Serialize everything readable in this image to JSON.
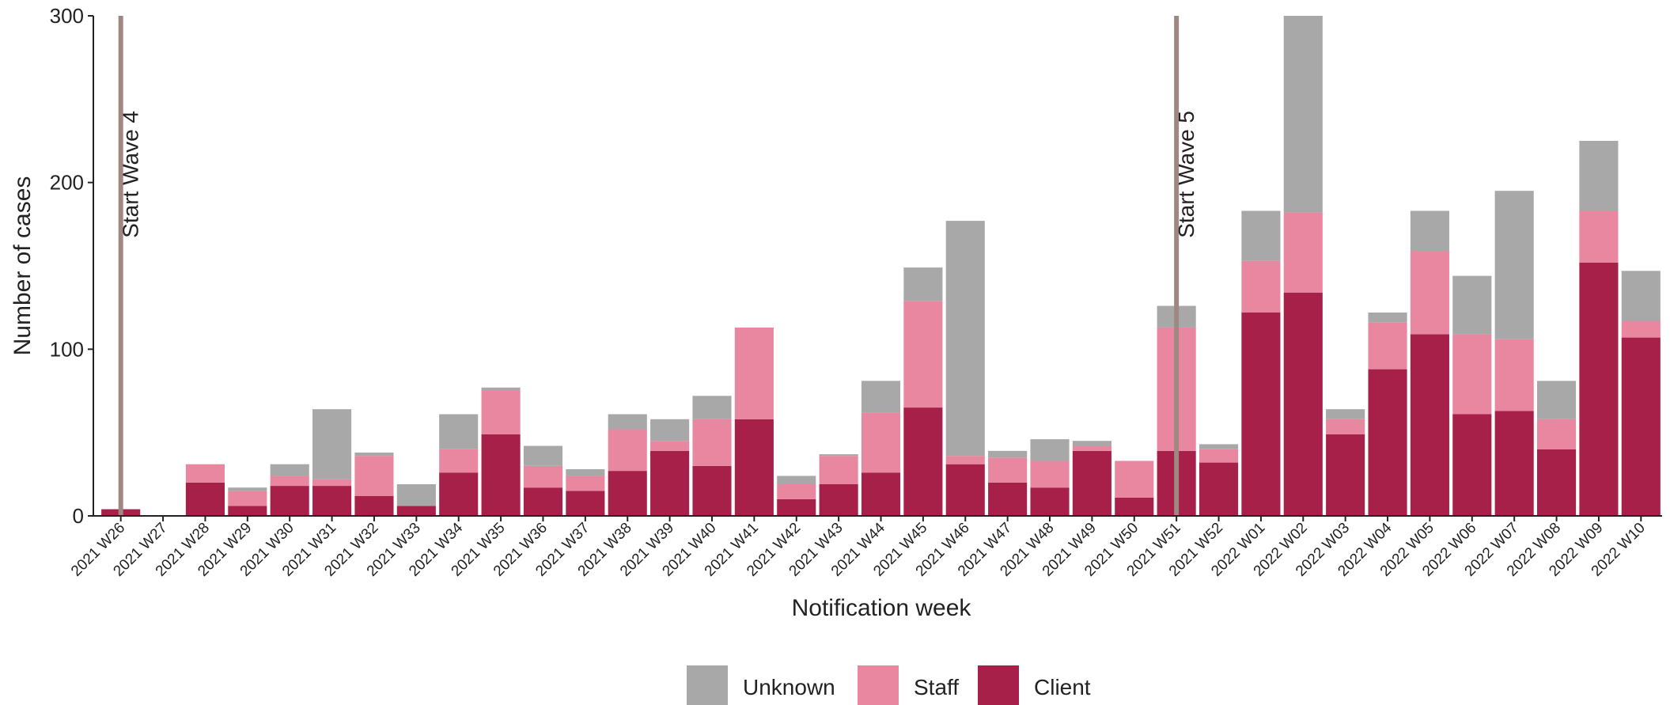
{
  "chart_data": {
    "type": "stacked_bar",
    "x_label": "Notification week",
    "y_label": "Number of cases",
    "categories": [
      "2021 W26",
      "2021 W27",
      "2021 W28",
      "2021 W29",
      "2021 W30",
      "2021 W31",
      "2021 W32",
      "2021 W33",
      "2021 W34",
      "2021 W35",
      "2021 W36",
      "2021 W37",
      "2021 W38",
      "2021 W39",
      "2021 W40",
      "2021 W41",
      "2021 W42",
      "2021 W43",
      "2021 W44",
      "2021 W45",
      "2021 W46",
      "2021 W47",
      "2021 W48",
      "2021 W49",
      "2021 W50",
      "2021 W51",
      "2021 W52",
      "2022 W01",
      "2022 W02",
      "2022 W03",
      "2022 W04",
      "2022 W05",
      "2022 W06",
      "2022 W07",
      "2022 W08",
      "2022 W09",
      "2022 W10"
    ],
    "series": [
      {
        "name": "Client",
        "color": "#a6204a",
        "values": [
          4,
          0,
          20,
          6,
          18,
          18,
          12,
          6,
          26,
          49,
          17,
          15,
          27,
          39,
          30,
          58,
          10,
          19,
          26,
          65,
          31,
          20,
          17,
          39,
          11,
          39,
          32,
          122,
          134,
          49,
          88,
          109,
          61,
          63,
          40,
          152,
          107
        ]
      },
      {
        "name": "Staff",
        "color": "#e8879f",
        "values": [
          0,
          0,
          11,
          9,
          6,
          4,
          24,
          0,
          14,
          26,
          13,
          9,
          25,
          6,
          28,
          55,
          9,
          17,
          36,
          64,
          5,
          15,
          16,
          3,
          22,
          74,
          8,
          31,
          48,
          9,
          28,
          50,
          48,
          43,
          18,
          31,
          10
        ]
      },
      {
        "name": "Unknown",
        "color": "#a8a8a8",
        "values": [
          0,
          0,
          0,
          2,
          7,
          42,
          2,
          13,
          21,
          2,
          12,
          4,
          9,
          13,
          14,
          0,
          5,
          1,
          19,
          20,
          141,
          4,
          13,
          3,
          0,
          13,
          3,
          30,
          118,
          6,
          6,
          24,
          35,
          89,
          23,
          42,
          30
        ]
      }
    ],
    "annotations": [
      {
        "category": "2021 W26",
        "label": "Start Wave 4",
        "color": "#a08882"
      },
      {
        "category": "2021 W51",
        "label": "Start Wave 5",
        "color": "#a08882"
      }
    ],
    "ylim": [
      0,
      300
    ],
    "yticks": [
      0,
      100,
      200,
      300
    ],
    "grid": false
  }
}
